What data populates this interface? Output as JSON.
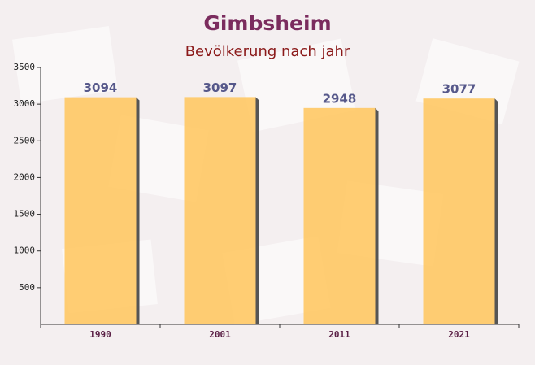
{
  "chart_data": {
    "type": "bar",
    "title": "Gimbsheim",
    "subtitle": "Bevölkerung nach jahr",
    "categories": [
      "1990",
      "2001",
      "2011",
      "2021"
    ],
    "values": [
      3094,
      3097,
      2948,
      3077
    ],
    "color": "#ffc55c",
    "ylim": [
      0,
      3500
    ],
    "yticks": [
      500,
      1000,
      1500,
      2000,
      2500,
      3000,
      3500
    ],
    "grid": false
  }
}
